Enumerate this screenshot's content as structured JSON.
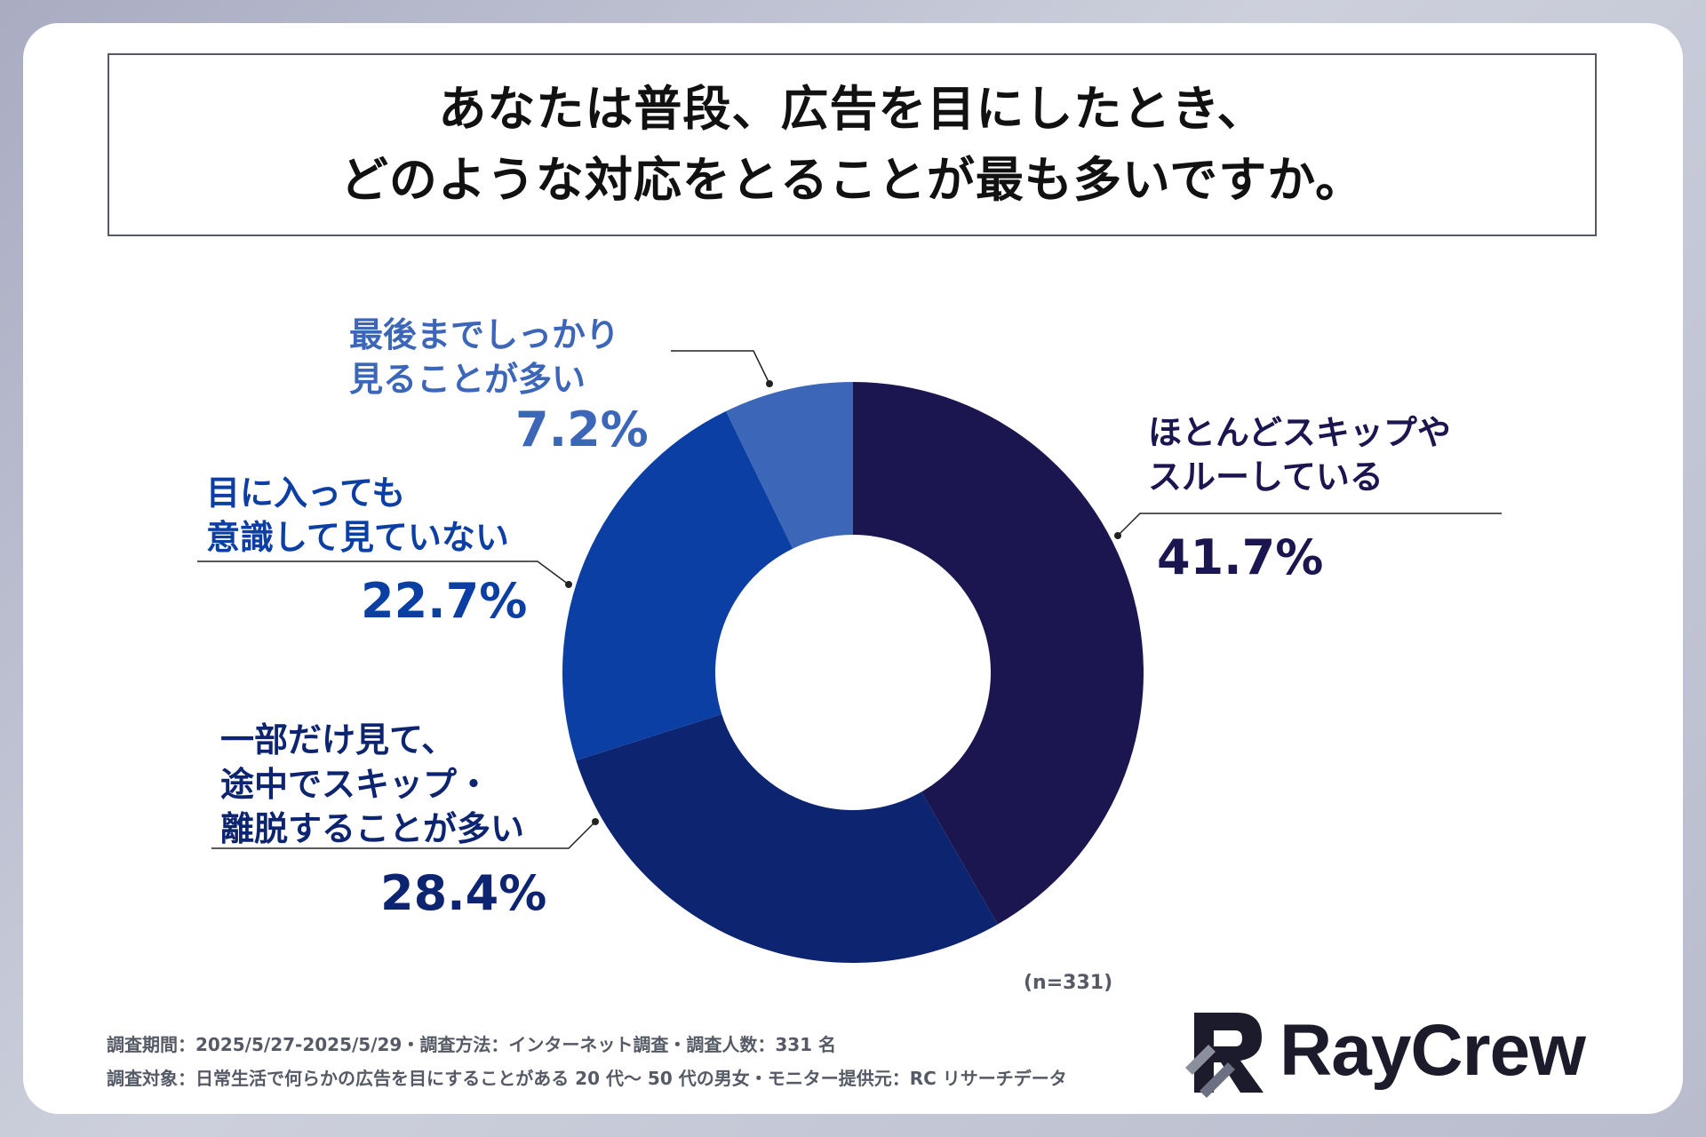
{
  "title": {
    "line1": "あなたは普段、広告を目にしたとき、",
    "line2": "どのような対応をとることが最も多いですか。"
  },
  "chart_data": {
    "type": "pie",
    "donut": true,
    "categories": [
      "ほとんどスキップやスルーしている",
      "一部だけ見て、途中でスキップ・離脱することが多い",
      "目に入っても意識して見ていない",
      "最後までしっかり見ることが多い"
    ],
    "values": [
      41.7,
      28.4,
      22.7,
      7.2
    ],
    "value_labels": [
      "41.7%",
      "28.4%",
      "22.7%",
      "7.2%"
    ],
    "colors": [
      "#1c1650",
      "#0d2470",
      "#0c3fa4",
      "#3c66b8"
    ]
  },
  "labels": {
    "skip_through": {
      "line1": "ほとんどスキップや",
      "line2": "スルーしている",
      "pct": "41.7%"
    },
    "partial": {
      "line1": "一部だけ見て、",
      "line2": "途中でスキップ・",
      "line3": "離脱することが多い",
      "pct": "28.4%"
    },
    "ignore": {
      "line1": "目に入っても",
      "line2": "意識して見ていない",
      "pct": "22.7%"
    },
    "full": {
      "line1": "最後までしっかり",
      "line2": "見ることが多い",
      "pct": "7.2%"
    }
  },
  "sample_note": "(n=331)",
  "footer": {
    "line1": "調査期間：2025/5/27-2025/5/29・調査方法：インターネット調査・調査人数：331 名",
    "line2": "調査対象：日常生活で何らかの広告を目にすることがある 20 代～ 50 代の男女・モニター提供元：RC リサーチデータ"
  },
  "logo": {
    "text": "RayCrew"
  },
  "colors": {
    "label_dark": "#1c1650",
    "label_navy": "#0d2470",
    "label_blue": "#0c3fa4",
    "label_light": "#3c66b8",
    "leader": "#222222"
  }
}
